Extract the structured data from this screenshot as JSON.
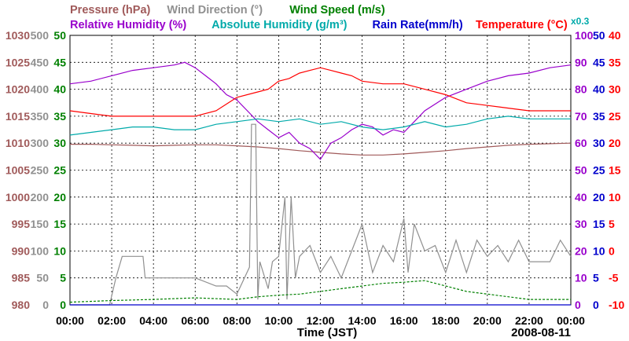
{
  "chart_data": {
    "type": "line",
    "xlabel": "Time (JST)",
    "date": "2008-08-11",
    "legend_row1": [
      {
        "text": "Pressure (hPa)",
        "color": "#a05a5a"
      },
      {
        "text": "Wind Direction (°)",
        "color": "#909090"
      },
      {
        "text": "Wind Speed (m/s)",
        "color": "#008000"
      }
    ],
    "legend_row2": [
      {
        "text": "Relative Humidity (%)",
        "color": "#9900cc"
      },
      {
        "text": "Absolute Humidity (g/m³)",
        "color": "#00aaaa"
      },
      {
        "text": "Rain Rate(mm/h)",
        "color": "#0000cc"
      },
      {
        "text": "Temperature (°C)",
        "color": "#ff0000"
      }
    ],
    "scale_note": {
      "text": "x0.3",
      "color": "#00aaaa"
    },
    "x_ticks": [
      "00:00",
      "02:00",
      "04:00",
      "06:00",
      "08:00",
      "10:00",
      "12:00",
      "14:00",
      "16:00",
      "18:00",
      "20:00",
      "22:00",
      "00:00"
    ],
    "axes": {
      "pressure": {
        "ticks": [
          "980",
          "985",
          "990",
          "995",
          "1000",
          "1005",
          "1010",
          "1015",
          "1020",
          "1025",
          "1030"
        ],
        "range": [
          980,
          1030
        ],
        "color": "#a05a5a"
      },
      "wind_direction": {
        "ticks": [
          "0",
          "50",
          "100",
          "150",
          "200",
          "250",
          "300",
          "350",
          "400",
          "450",
          "500"
        ],
        "range": [
          0,
          500
        ],
        "color": "#909090"
      },
      "wind_speed": {
        "ticks": [
          "0",
          "5",
          "10",
          "15",
          "20",
          "25",
          "30",
          "35",
          "40",
          "45",
          "50"
        ],
        "range": [
          0,
          50
        ],
        "color": "#008000"
      },
      "relative_humidity": {
        "ticks": [
          "0",
          "10",
          "20",
          "30",
          "40",
          "50",
          "60",
          "70",
          "80",
          "90",
          "100"
        ],
        "range": [
          0,
          100
        ],
        "color": "#9900cc"
      },
      "rain_rate": {
        "ticks": [
          "0",
          "5",
          "10",
          "15",
          "20",
          "25",
          "30",
          "35",
          "40",
          "45",
          "50"
        ],
        "range": [
          0,
          50
        ],
        "color": "#0000cc"
      },
      "temperature": {
        "ticks": [
          "-10",
          "-5",
          "0",
          "5",
          "10",
          "15",
          "20",
          "25",
          "30",
          "35",
          "40"
        ],
        "range": [
          -10,
          40
        ],
        "color": "#ff0000"
      }
    },
    "series": [
      {
        "name": "Pressure (hPa)",
        "axis": "pressure",
        "color": "#a05a5a",
        "x": [
          0,
          1,
          2,
          3,
          4,
          5,
          6,
          7,
          8,
          9,
          10,
          11,
          12,
          13,
          14,
          15,
          16,
          17,
          18,
          19,
          20,
          21,
          22,
          23,
          24
        ],
        "values": [
          1009.8,
          1009.8,
          1009.7,
          1009.6,
          1009.5,
          1009.6,
          1009.7,
          1009.7,
          1009.5,
          1009.3,
          1009.0,
          1008.6,
          1008.3,
          1008.0,
          1007.8,
          1007.8,
          1008.0,
          1008.3,
          1008.6,
          1009.0,
          1009.3,
          1009.6,
          1009.8,
          1009.9,
          1010.0
        ]
      },
      {
        "name": "Wind Direction (°)",
        "axis": "wind_direction",
        "color": "#909090",
        "x": [
          0,
          1,
          1.9,
          2.2,
          2.5,
          3.5,
          3.6,
          4,
          5,
          5.8,
          6,
          7,
          7.5,
          8,
          8.6,
          8.7,
          8.9,
          9.0,
          9.1,
          9.5,
          9.7,
          10,
          10.3,
          10.4,
          10.6,
          10.8,
          11,
          11.5,
          12,
          12.5,
          13,
          13.5,
          14,
          14.5,
          15,
          15.5,
          16,
          16.2,
          16.5,
          17,
          17.5,
          18,
          18.5,
          19,
          19.5,
          20,
          20.5,
          21,
          21.5,
          22,
          22.5,
          23,
          23.5,
          24
        ],
        "values": [
          0,
          0,
          0,
          50,
          90,
          90,
          50,
          50,
          50,
          50,
          50,
          35,
          35,
          20,
          70,
          335,
          335,
          10,
          80,
          30,
          80,
          90,
          200,
          10,
          200,
          50,
          90,
          110,
          60,
          90,
          50,
          100,
          150,
          60,
          110,
          80,
          160,
          60,
          150,
          100,
          110,
          60,
          120,
          60,
          120,
          90,
          110,
          80,
          120,
          80,
          80,
          80,
          120,
          90
        ]
      },
      {
        "name": "Wind Speed (m/s)",
        "axis": "wind_speed",
        "color": "#008000",
        "x": [
          0,
          2,
          4,
          6,
          8,
          9,
          10,
          11,
          12,
          13,
          14,
          15,
          16,
          17,
          18,
          19,
          20,
          21,
          22,
          23,
          24
        ],
        "values": [
          0.5,
          0.8,
          1.0,
          1.3,
          1.0,
          1.5,
          1.8,
          2.0,
          2.5,
          3.0,
          3.5,
          4.0,
          4.2,
          4.5,
          3.5,
          2.5,
          2.0,
          1.5,
          1.0,
          1.0,
          1.0
        ]
      },
      {
        "name": "Relative Humidity (%)",
        "axis": "relative_humidity",
        "color": "#9900cc",
        "x": [
          0,
          1,
          2,
          3,
          4,
          5,
          5.5,
          6,
          6.5,
          7,
          7.5,
          8,
          8.5,
          9,
          9.5,
          10,
          10.5,
          11,
          11.5,
          12,
          12.5,
          13,
          13.5,
          14,
          14.5,
          15,
          15.5,
          16,
          16.5,
          17,
          18,
          19,
          20,
          21,
          22,
          23,
          24
        ],
        "values": [
          82,
          83,
          85,
          87,
          88,
          89,
          90,
          88,
          85,
          82,
          78,
          76,
          72,
          68,
          65,
          62,
          64,
          60,
          58,
          54,
          60,
          62,
          65,
          67,
          66,
          63,
          65,
          64,
          68,
          72,
          77,
          80,
          83,
          85,
          86,
          88,
          89
        ]
      },
      {
        "name": "Absolute Humidity (g/m³)",
        "axis": "wind_speed",
        "color": "#00aaaa",
        "x": [
          0,
          1,
          2,
          3,
          4,
          5,
          6,
          7,
          8,
          9,
          10,
          11,
          12,
          13,
          14,
          15,
          16,
          17,
          18,
          19,
          20,
          21,
          22,
          23,
          24
        ],
        "values": [
          31.5,
          32,
          32.5,
          33,
          33,
          32.5,
          32.5,
          33.5,
          34,
          34.5,
          34,
          34.5,
          33.5,
          34,
          33,
          32.5,
          33,
          34,
          33,
          33.5,
          34.5,
          35,
          34.5,
          34.5,
          34.5
        ]
      },
      {
        "name": "Rain Rate(mm/h)",
        "axis": "rain_rate",
        "color": "#0000cc",
        "x": [
          0,
          24
        ],
        "values": [
          0,
          0
        ]
      },
      {
        "name": "Temperature (°C)",
        "axis": "temperature",
        "color": "#ff0000",
        "x": [
          0,
          1,
          2,
          3,
          4,
          5,
          6,
          7,
          8,
          9,
          9.5,
          10,
          10.5,
          11,
          11.5,
          12,
          12.5,
          13,
          13.5,
          14,
          15,
          16,
          17,
          18,
          19,
          20,
          21,
          22,
          23,
          24
        ],
        "values": [
          26,
          25.5,
          25,
          25,
          25,
          25,
          25,
          26,
          28.5,
          29.5,
          30,
          31.5,
          32,
          33,
          33.5,
          34,
          33.5,
          33,
          32.5,
          31.5,
          31,
          31,
          30,
          29,
          27.5,
          27,
          26.5,
          26,
          26,
          26
        ]
      }
    ]
  }
}
